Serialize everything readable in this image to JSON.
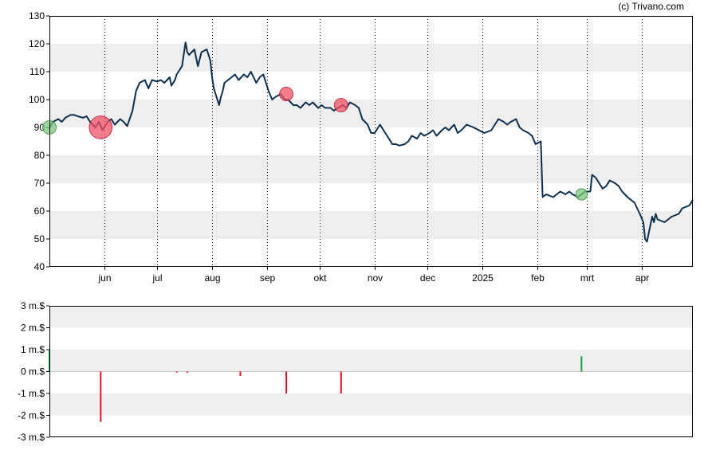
{
  "credit": "(c) Trivano.com",
  "chart_data": [
    {
      "type": "line",
      "ylim": [
        40,
        130
      ],
      "yticks": [
        40,
        50,
        60,
        70,
        80,
        90,
        100,
        110,
        120,
        130
      ],
      "x_domain": [
        "2024-05-01",
        "2025-04-30"
      ],
      "xticks": [
        {
          "label": "jun",
          "date": "2024-06-01"
        },
        {
          "label": "jul",
          "date": "2024-07-01"
        },
        {
          "label": "aug",
          "date": "2024-08-01"
        },
        {
          "label": "sep",
          "date": "2024-09-01"
        },
        {
          "label": "okt",
          "date": "2024-10-01"
        },
        {
          "label": "nov",
          "date": "2024-11-01"
        },
        {
          "label": "dec",
          "date": "2024-12-01"
        },
        {
          "label": "2025",
          "date": "2025-01-01"
        },
        {
          "label": "feb",
          "date": "2025-02-01"
        },
        {
          "label": "mrt",
          "date": "2025-03-01"
        },
        {
          "label": "apr",
          "date": "2025-04-01"
        }
      ],
      "line_color": "#0b2f4f",
      "series": [
        {
          "points": [
            [
              "2024-05-01",
              89.5
            ],
            [
              "2024-05-02",
              91
            ],
            [
              "2024-05-03",
              92
            ],
            [
              "2024-05-06",
              93
            ],
            [
              "2024-05-08",
              92
            ],
            [
              "2024-05-10",
              93.5
            ],
            [
              "2024-05-13",
              94.5
            ],
            [
              "2024-05-15",
              94.5
            ],
            [
              "2024-05-17",
              94
            ],
            [
              "2024-05-20",
              93.5
            ],
            [
              "2024-05-22",
              94
            ],
            [
              "2024-05-24",
              92
            ],
            [
              "2024-05-27",
              90
            ],
            [
              "2024-05-29",
              92
            ],
            [
              "2024-05-31",
              89
            ],
            [
              "2024-06-03",
              92
            ],
            [
              "2024-06-05",
              93
            ],
            [
              "2024-06-07",
              91
            ],
            [
              "2024-06-10",
              93
            ],
            [
              "2024-06-12",
              92
            ],
            [
              "2024-06-14",
              90.5
            ],
            [
              "2024-06-17",
              96
            ],
            [
              "2024-06-19",
              103
            ],
            [
              "2024-06-21",
              106
            ],
            [
              "2024-06-24",
              107
            ],
            [
              "2024-06-26",
              104
            ],
            [
              "2024-06-28",
              107
            ],
            [
              "2024-07-01",
              106.5
            ],
            [
              "2024-07-03",
              107
            ],
            [
              "2024-07-05",
              106
            ],
            [
              "2024-07-08",
              108
            ],
            [
              "2024-07-09",
              105
            ],
            [
              "2024-07-11",
              107
            ],
            [
              "2024-07-12",
              109
            ],
            [
              "2024-07-15",
              112
            ],
            [
              "2024-07-17",
              120.5
            ],
            [
              "2024-07-18",
              117
            ],
            [
              "2024-07-19",
              116
            ],
            [
              "2024-07-22",
              118
            ],
            [
              "2024-07-23",
              115
            ],
            [
              "2024-07-24",
              112
            ],
            [
              "2024-07-26",
              117
            ],
            [
              "2024-07-29",
              118
            ],
            [
              "2024-07-31",
              114
            ],
            [
              "2024-08-01",
              108
            ],
            [
              "2024-08-02",
              104
            ],
            [
              "2024-08-05",
              98
            ],
            [
              "2024-08-06",
              101
            ],
            [
              "2024-08-07",
              103
            ],
            [
              "2024-08-08",
              106
            ],
            [
              "2024-08-12",
              108
            ],
            [
              "2024-08-14",
              109
            ],
            [
              "2024-08-16",
              107
            ],
            [
              "2024-08-19",
              109
            ],
            [
              "2024-08-21",
              108
            ],
            [
              "2024-08-23",
              110
            ],
            [
              "2024-08-26",
              106
            ],
            [
              "2024-08-28",
              108
            ],
            [
              "2024-08-30",
              109
            ],
            [
              "2024-09-02",
              103
            ],
            [
              "2024-09-04",
              100
            ],
            [
              "2024-09-06",
              101
            ],
            [
              "2024-09-09",
              102
            ],
            [
              "2024-09-11",
              100
            ],
            [
              "2024-09-13",
              100
            ],
            [
              "2024-09-16",
              98
            ],
            [
              "2024-09-18",
              98
            ],
            [
              "2024-09-20",
              97
            ],
            [
              "2024-09-23",
              99
            ],
            [
              "2024-09-25",
              98
            ],
            [
              "2024-09-27",
              99
            ],
            [
              "2024-09-30",
              97
            ],
            [
              "2024-10-02",
              98
            ],
            [
              "2024-10-04",
              97
            ],
            [
              "2024-10-07",
              97
            ],
            [
              "2024-10-09",
              96
            ],
            [
              "2024-10-11",
              97
            ],
            [
              "2024-10-14",
              98
            ],
            [
              "2024-10-16",
              97
            ],
            [
              "2024-10-18",
              99
            ],
            [
              "2024-10-21",
              98
            ],
            [
              "2024-10-23",
              97
            ],
            [
              "2024-10-25",
              93
            ],
            [
              "2024-10-28",
              91
            ],
            [
              "2024-10-30",
              88
            ],
            [
              "2024-11-01",
              88
            ],
            [
              "2024-11-04",
              91
            ],
            [
              "2024-11-06",
              89
            ],
            [
              "2024-11-08",
              87
            ],
            [
              "2024-11-11",
              84
            ],
            [
              "2024-11-13",
              84
            ],
            [
              "2024-11-15",
              83.5
            ],
            [
              "2024-11-18",
              84
            ],
            [
              "2024-11-20",
              85
            ],
            [
              "2024-11-22",
              87
            ],
            [
              "2024-11-25",
              86
            ],
            [
              "2024-11-27",
              88
            ],
            [
              "2024-11-29",
              87
            ],
            [
              "2024-12-02",
              88
            ],
            [
              "2024-12-04",
              89
            ],
            [
              "2024-12-06",
              87
            ],
            [
              "2024-12-09",
              89
            ],
            [
              "2024-12-11",
              90
            ],
            [
              "2024-12-13",
              89
            ],
            [
              "2024-12-16",
              91
            ],
            [
              "2024-12-18",
              88
            ],
            [
              "2024-12-20",
              89
            ],
            [
              "2024-12-23",
              91
            ],
            [
              "2024-12-27",
              90
            ],
            [
              "2024-12-30",
              89
            ],
            [
              "2025-01-02",
              88
            ],
            [
              "2025-01-06",
              89
            ],
            [
              "2025-01-08",
              91
            ],
            [
              "2025-01-10",
              93
            ],
            [
              "2025-01-13",
              92
            ],
            [
              "2025-01-15",
              91
            ],
            [
              "2025-01-17",
              92
            ],
            [
              "2025-01-20",
              93
            ],
            [
              "2025-01-22",
              90
            ],
            [
              "2025-01-24",
              89
            ],
            [
              "2025-01-27",
              88
            ],
            [
              "2025-01-29",
              87
            ],
            [
              "2025-01-31",
              84
            ],
            [
              "2025-02-03",
              85
            ],
            [
              "2025-02-04",
              65
            ],
            [
              "2025-02-06",
              66
            ],
            [
              "2025-02-10",
              65
            ],
            [
              "2025-02-12",
              66
            ],
            [
              "2025-02-14",
              67
            ],
            [
              "2025-02-17",
              66
            ],
            [
              "2025-02-19",
              67
            ],
            [
              "2025-02-21",
              66
            ],
            [
              "2025-02-24",
              65
            ],
            [
              "2025-02-26",
              66
            ],
            [
              "2025-02-28",
              67
            ],
            [
              "2025-03-03",
              67
            ],
            [
              "2025-03-04",
              73
            ],
            [
              "2025-03-06",
              72
            ],
            [
              "2025-03-10",
              68
            ],
            [
              "2025-03-12",
              69
            ],
            [
              "2025-03-14",
              71
            ],
            [
              "2025-03-17",
              70
            ],
            [
              "2025-03-19",
              69
            ],
            [
              "2025-03-21",
              67
            ],
            [
              "2025-03-24",
              65
            ],
            [
              "2025-03-26",
              64
            ],
            [
              "2025-03-28",
              63
            ],
            [
              "2025-03-31",
              59
            ],
            [
              "2025-04-02",
              56
            ],
            [
              "2025-04-03",
              50
            ],
            [
              "2025-04-04",
              49
            ],
            [
              "2025-04-07",
              58
            ],
            [
              "2025-04-08",
              56
            ],
            [
              "2025-04-09",
              59
            ],
            [
              "2025-04-10",
              57
            ],
            [
              "2025-04-14",
              56
            ],
            [
              "2025-04-16",
              57
            ],
            [
              "2025-04-18",
              58
            ],
            [
              "2025-04-22",
              59
            ],
            [
              "2025-04-24",
              61
            ],
            [
              "2025-04-28",
              62
            ],
            [
              "2025-04-30",
              64
            ]
          ]
        }
      ],
      "markers": [
        {
          "date": "2024-05-01",
          "value": 90,
          "kind": "buy",
          "magnitude": 1.0
        },
        {
          "date": "2024-05-30",
          "value": 90,
          "kind": "sell",
          "magnitude": 2.3
        },
        {
          "date": "2024-09-12",
          "value": 102,
          "kind": "sell",
          "magnitude": 1.0
        },
        {
          "date": "2024-10-13",
          "value": 98,
          "kind": "sell",
          "magnitude": 1.0
        },
        {
          "date": "2025-02-26",
          "value": 66,
          "kind": "buy",
          "magnitude": 0.7
        }
      ]
    },
    {
      "type": "bar",
      "ylim": [
        -3,
        3
      ],
      "yticks": [
        {
          "value": 3,
          "label": "3 m.$"
        },
        {
          "value": 2,
          "label": "2 m.$"
        },
        {
          "value": 1,
          "label": "1 m.$"
        },
        {
          "value": 0,
          "label": "0 m.$"
        },
        {
          "value": -1,
          "label": "-1 m.$"
        },
        {
          "value": -2,
          "label": "-2 m.$"
        },
        {
          "value": -3,
          "label": "-3 m.$"
        }
      ],
      "positive_color": "#1f9a3a",
      "negative_color": "#e0102a",
      "bars": [
        {
          "date": "2024-05-01",
          "value": 1.0
        },
        {
          "date": "2024-05-30",
          "value": -2.3
        },
        {
          "date": "2024-07-12",
          "value": -0.05
        },
        {
          "date": "2024-07-18",
          "value": -0.05
        },
        {
          "date": "2024-08-17",
          "value": -0.2
        },
        {
          "date": "2024-09-12",
          "value": -1.0
        },
        {
          "date": "2024-10-13",
          "value": -1.0
        },
        {
          "date": "2025-02-26",
          "value": 0.7
        }
      ]
    }
  ]
}
